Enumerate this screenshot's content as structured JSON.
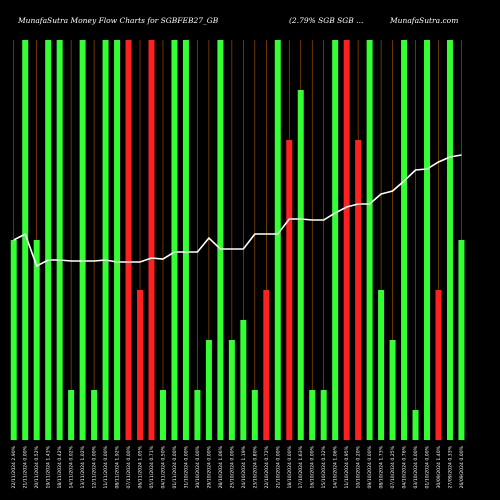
{
  "chart_data": {
    "type": "bar",
    "title": "MunafaSutra  Money Flow Charts for SGBFEB27_GB",
    "subtitle": "(2.79% SGB SGB ...",
    "watermark": "MunafaSutra.com",
    "categories": [
      "22 Fri Nov 2024",
      "21 Thu Nov 2024",
      "20 Wed Nov 2024",
      "19 Tue Nov 2024",
      "18 Mon Nov 2024",
      "14 Thu Nov 2024",
      "13 Wed Nov 2024",
      "12 Tue Nov 2024",
      "11 Mon Nov 2024",
      "08 Fri Nov 2024",
      "07 Thu Nov 2024",
      "06 Wed Nov 2024",
      "05 Tue Nov 2024",
      "04 Mon Nov 2024",
      "01 Fri Nov 2024",
      "31 Thu Oct 2024",
      "30 Wed Oct 2024",
      "29 Tue Oct 2024",
      "28 Mon Oct 2024",
      "25 Fri Oct 2024",
      "24 Thu Oct 2024",
      "23 Wed Oct 2024",
      "22 Tue Oct 2024",
      "21 Mon Oct 2024",
      "18 Fri Oct 2024",
      "17 Thu Oct 2024",
      "16 Wed Oct 2024",
      "15 Tue Oct 2024",
      "14 Mon Oct 2024",
      "11 Fri Oct 2024",
      "10 Thu Oct 2024",
      "09 Wed Oct 2024",
      "08 Tue Oct 2024",
      "07 Mon Oct 2024",
      "04 Fri Oct 2024",
      "03 Thu Oct 2024",
      "01 Tue Oct 2024",
      "30 Mon Sep 2024",
      "27 Fri Sep 2024",
      "26 Thu Sep 2024"
    ],
    "tick_labels": [
      "22/11/2024 2.90%",
      "21/11/2024 0.00%",
      "20/11/2024 0.52%",
      "19/11/2024 1.43%",
      "18/11/2024 0.42%",
      "14/11/2024 0.02%",
      "13/11/2024 1.02%",
      "12/11/2024 0.00%",
      "11/11/2024 0.00%",
      "08/11/2024 1.92%",
      "07/11/2024 0.00%",
      "06/11/2024 1.05%",
      "05/11/2024 0.71%",
      "04/11/2024 0.50%",
      "01/11/2024 0.00%",
      "31/10/2024 0.00%",
      "30/10/2024 0.00%",
      "29/10/2024 0.00%",
      "28/10/2024 1.06%",
      "25/10/2024 0.00%",
      "24/10/2024 1.19%",
      "23/10/2024 0.80%",
      "22/10/2024 0.72%",
      "21/10/2024 0.00%",
      "18/10/2024 0.00%",
      "17/10/2024 1.63%",
      "16/10/2024 0.00%",
      "15/10/2024 0.32%",
      "14/10/2024 1.06%",
      "11/10/2024 0.95%",
      "10/10/2024 0.20%",
      "09/10/2024 0.00%",
      "08/10/2024 1.73%",
      "07/10/2024 0.25%",
      "04/10/2024 0.76%",
      "03/10/2024 0.00%",
      "01/10/2024 0.00%",
      "30/09/2024 1.40%",
      "27/09/2024 0.33%",
      "26/09/2024 0.00%"
    ],
    "values": [
      200,
      400,
      200,
      400,
      400,
      50,
      400,
      50,
      400,
      400,
      400,
      150,
      400,
      50,
      400,
      400,
      50,
      100,
      400,
      100,
      120,
      50,
      150,
      400,
      300,
      350,
      50,
      50,
      400,
      400,
      300,
      400,
      150,
      100,
      400,
      30,
      400,
      150,
      400,
      200
    ],
    "bar_colors": [
      "green",
      "green",
      "green",
      "green",
      "green",
      "green",
      "green",
      "green",
      "green",
      "green",
      "red",
      "red",
      "red",
      "green",
      "green",
      "green",
      "green",
      "green",
      "green",
      "green",
      "green",
      "green",
      "red",
      "green",
      "red",
      "green",
      "green",
      "green",
      "green",
      "red",
      "red",
      "green",
      "green",
      "green",
      "green",
      "green",
      "green",
      "red",
      "green",
      "green"
    ],
    "line_values": [
      200,
      206,
      174,
      180,
      180,
      179,
      179,
      179,
      180,
      178,
      178,
      178,
      182,
      181,
      188,
      188,
      188,
      202,
      191,
      191,
      191,
      206,
      206,
      206,
      221,
      221,
      220,
      220,
      227,
      233,
      236,
      236,
      246,
      249,
      259,
      270,
      271,
      278,
      283,
      285
    ],
    "ylim": [
      0,
      400
    ],
    "colors": {
      "green": "#33ff33",
      "red": "#ff2020",
      "line": "#ffffff",
      "grid": "#b35900",
      "background": "#000000"
    }
  }
}
